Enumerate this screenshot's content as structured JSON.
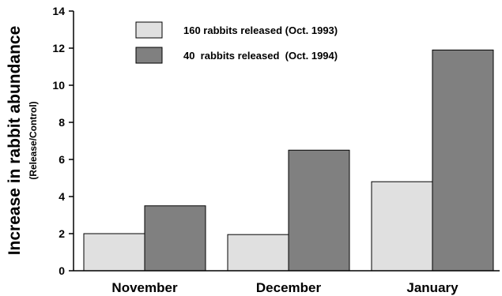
{
  "chart_data": {
    "type": "bar",
    "categories": [
      "November",
      "December",
      "January"
    ],
    "series": [
      {
        "name": "160 rabbits released (Oct. 1993)",
        "values": [
          2.0,
          1.95,
          4.8
        ],
        "color": "#e0e0e0"
      },
      {
        "name": "40  rabbits released  (Oct. 1994)",
        "values": [
          3.5,
          6.5,
          11.9
        ],
        "color": "#808080"
      }
    ],
    "ylabel": "Increase in rabbit abundance",
    "ylabel_sub": "(Release/Control)",
    "ylim": [
      0,
      14
    ],
    "yticks": [
      "0",
      "2",
      "4",
      "6",
      "8",
      "10",
      "12",
      "14"
    ],
    "grid": false,
    "legend": "top-left"
  }
}
